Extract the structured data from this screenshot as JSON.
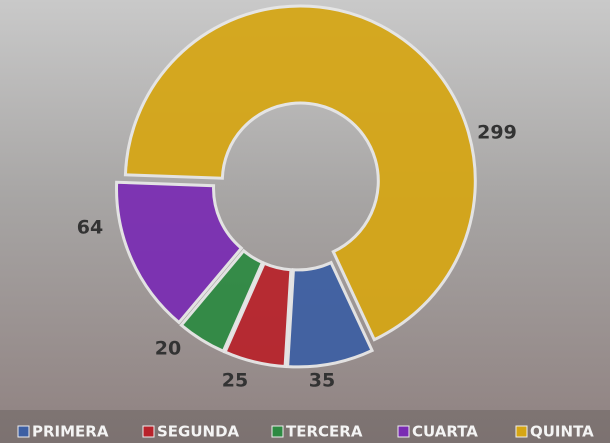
{
  "chart_data": {
    "type": "donut",
    "categories": [
      "PRIMERA",
      "SEGUNDA",
      "TERCERA",
      "CUARTA",
      "QUINTA"
    ],
    "values": [
      35,
      25,
      20,
      64,
      299
    ],
    "colors": [
      "#3d5fa3",
      "#b8232b",
      "#2d8a42",
      "#7a2cb3",
      "#d6a614"
    ],
    "legend": "bottom"
  }
}
